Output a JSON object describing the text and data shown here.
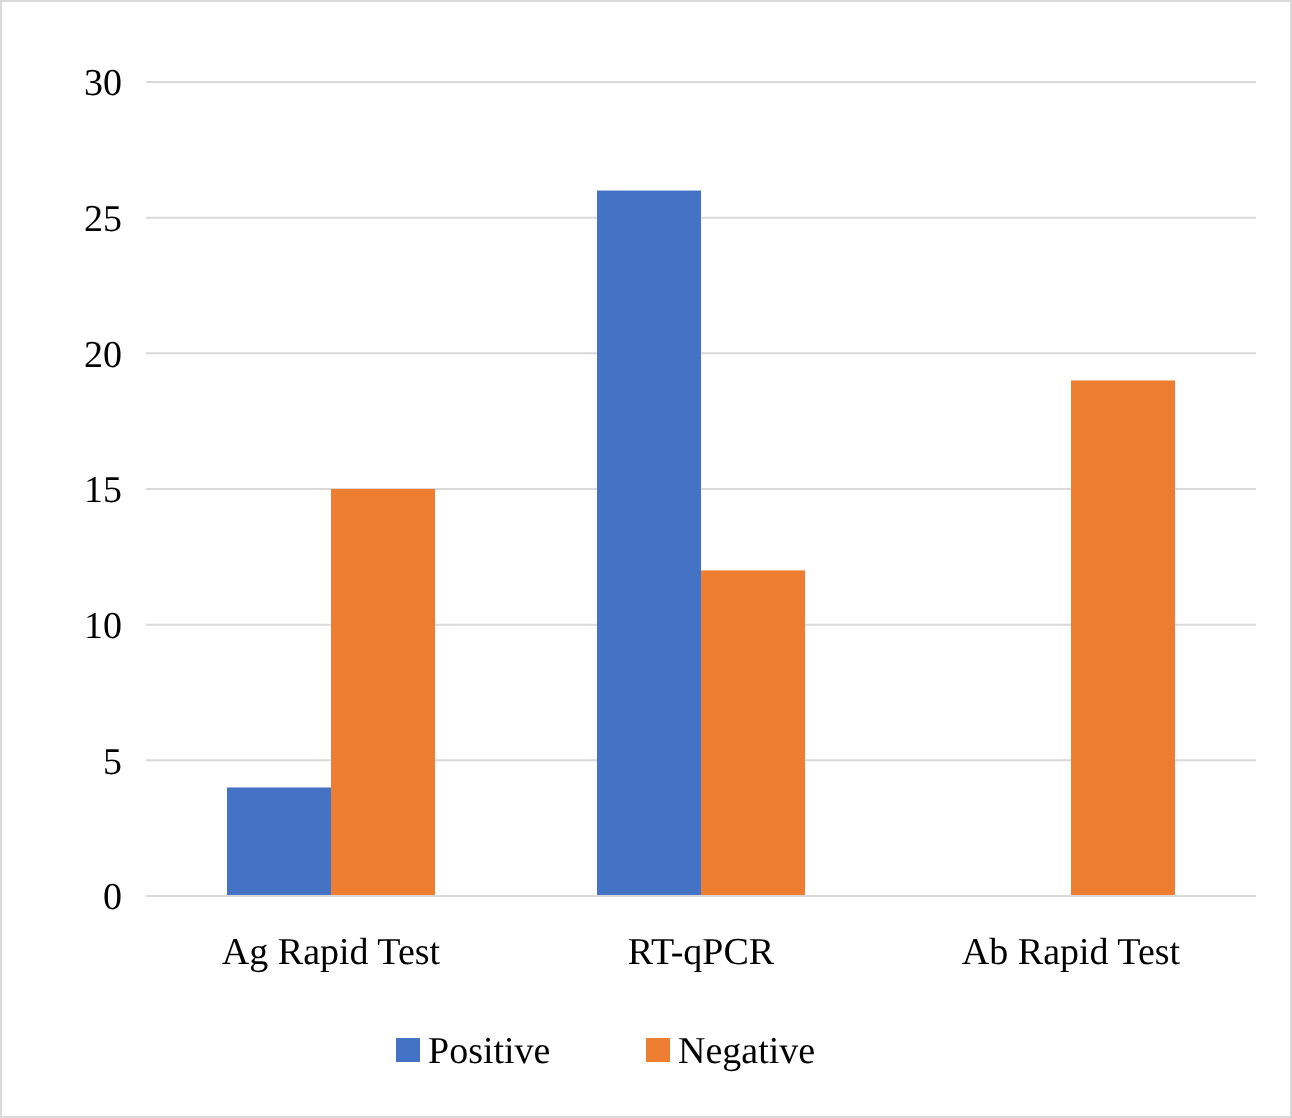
{
  "chart_data": {
    "type": "bar",
    "categories": [
      "Ag Rapid Test",
      "RT-qPCR",
      "Ab Rapid Test"
    ],
    "series": [
      {
        "name": "Positive",
        "color": "#4472c4",
        "values": [
          4,
          26,
          0
        ]
      },
      {
        "name": "Negative",
        "color": "#ed7d31",
        "values": [
          15,
          12,
          19
        ]
      }
    ],
    "ylim": [
      0,
      30
    ],
    "yticks": [
      0,
      5,
      10,
      15,
      20,
      25,
      30
    ],
    "grid": "y",
    "legend": "bottom"
  }
}
